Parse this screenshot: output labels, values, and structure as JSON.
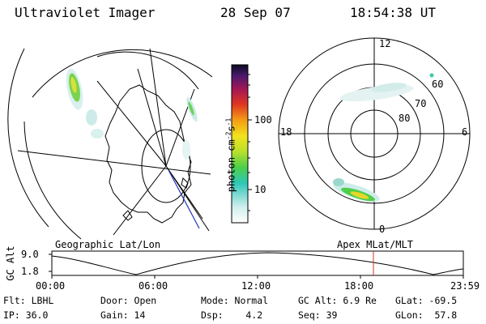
{
  "header": {
    "instrument": "Ultraviolet Imager",
    "date": "28 Sep 07",
    "time": "18:54:38 UT"
  },
  "colorbar": {
    "label": "photon cm",
    "label_sup1": "-2",
    "label_mid": "s",
    "label_sup2": "-1",
    "ticks": [
      "100",
      "10"
    ]
  },
  "polar_plot": {
    "mlt_labels": {
      "top": "12",
      "left": "18",
      "right": "6",
      "bottom": "0"
    },
    "lat_labels": [
      "60",
      "70",
      "80"
    ]
  },
  "map_labels": {
    "left": "Geographic Lat/Lon",
    "right": "Apex MLat/MLT"
  },
  "timeline": {
    "ylabel": "GC Alt",
    "y_ticks": [
      "9.0",
      "1.8"
    ],
    "x_ticks": [
      "00:00",
      "06:00",
      "12:00",
      "18:00",
      "23:59"
    ],
    "current_marker_color": "#c03a2b"
  },
  "footer": {
    "row1": {
      "filter": "Flt: LBHL",
      "door": "Door: Open",
      "mode": "Mode: Normal",
      "gc_alt": "GC Alt: 6.9 Re",
      "glat": "GLat: -69.5"
    },
    "row2": {
      "ip": "IP: 36.0",
      "gain": "Gain: 14",
      "dsp": "Dsp:    4.2",
      "seq": "Seq: 39",
      "glon": "GLon:  57.8"
    }
  }
}
